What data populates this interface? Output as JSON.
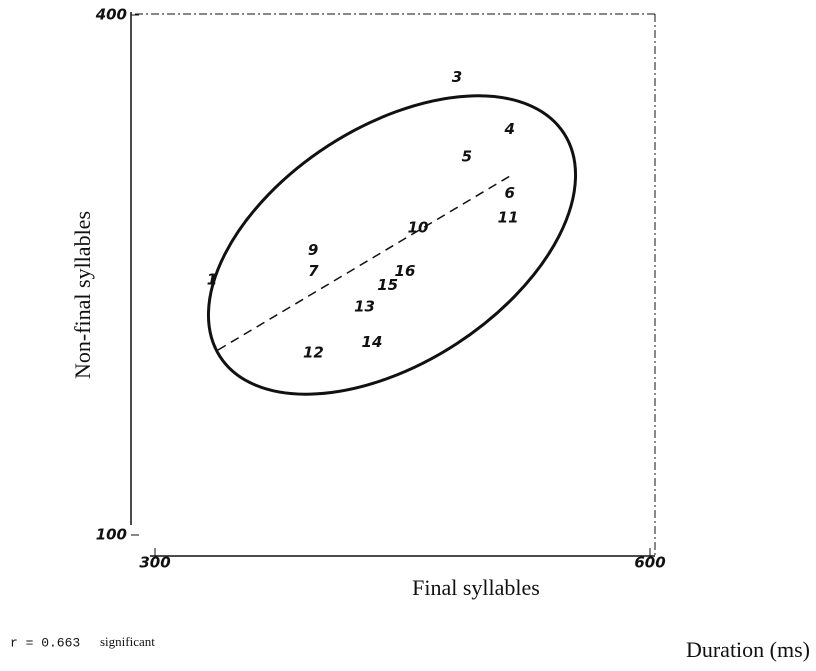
{
  "chart_data": {
    "type": "scatter",
    "x_label": "Final syllables",
    "y_label": "Non-final syllables",
    "annotations": [
      "r = 0.663",
      "significant",
      "Duration (ms)"
    ],
    "point_labels": [
      "1",
      "9",
      "7",
      "3",
      "4",
      "5",
      "6",
      "10",
      "11",
      "15",
      "16",
      "13",
      "12",
      "14"
    ],
    "x": [
      334.5,
      395.8,
      396,
      483,
      515,
      489,
      515,
      459.4,
      514,
      441,
      451.5,
      427,
      396,
      431.5
    ],
    "values": [
      247,
      264,
      252,
      364,
      334,
      318,
      297,
      277,
      283,
      244,
      252,
      231.5,
      205,
      211
    ],
    "color": "#111111",
    "xlim": [
      300,
      600
    ],
    "xticks": [
      300,
      600
    ],
    "ylim": [
      100,
      400
    ],
    "yticks": [
      100,
      400
    ]
  }
}
